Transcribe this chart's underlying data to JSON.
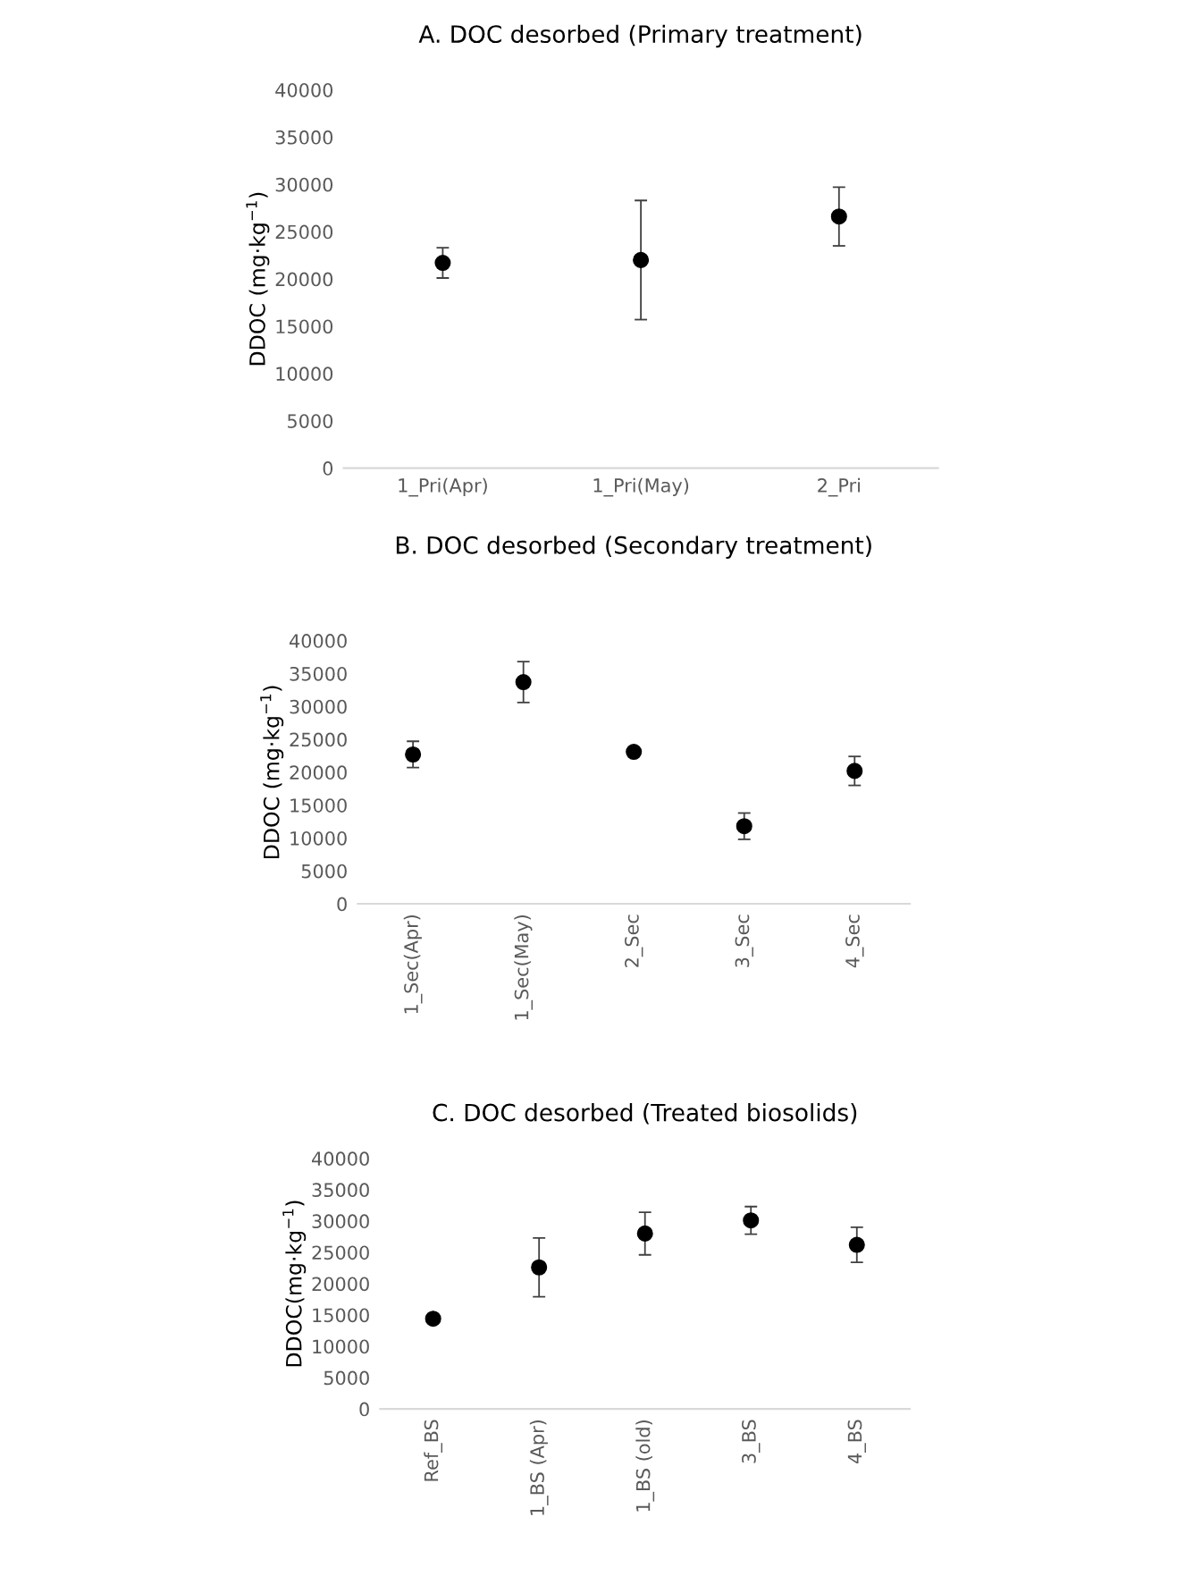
{
  "chart_data": [
    {
      "type": "scatter",
      "title": "A. DOC desorbed (Primary treatment)",
      "ylabel": "DDOC (mg·kg$^{−1}$)",
      "categories": [
        "1_Pri(Apr)",
        "1_Pri(May)",
        "2_Pri"
      ],
      "series": [
        {
          "color": "#000000",
          "values": [
            21700,
            22000,
            26600
          ],
          "errors": [
            1600,
            6300,
            3100
          ]
        }
      ],
      "ylim": [
        0,
        40000
      ],
      "yticks": [
        0,
        5000,
        10000,
        15000,
        20000,
        25000,
        30000,
        35000,
        40000
      ],
      "marker": "circle",
      "grid": false
    },
    {
      "type": "scatter",
      "title": "B. DOC desorbed (Secondary treatment)",
      "ylabel": "DDOC (mg·kg$^{−1}$)",
      "categories": [
        "1_Sec(Apr)",
        "1_Sec(May)",
        "2_Sec",
        "3_Sec",
        "4_Sec"
      ],
      "series": [
        {
          "color": "#000000",
          "values": [
            22700,
            33700,
            23100,
            11800,
            20200
          ],
          "errors": [
            2000,
            3100,
            600,
            2000,
            2200
          ]
        }
      ],
      "ylim": [
        0,
        40000
      ],
      "yticks": [
        0,
        5000,
        10000,
        15000,
        20000,
        25000,
        30000,
        35000,
        40000
      ],
      "marker": "circle",
      "grid": false
    },
    {
      "type": "scatter",
      "title": "C. DOC desorbed (Treated biosolids)",
      "ylabel": "DDOC(mg·kg$^{−1}$)",
      "categories": [
        "Ref_BS",
        "1_BS (Apr)",
        "1_BS (old)",
        "3_BS",
        "4_BS"
      ],
      "series": [
        {
          "color": "#000000",
          "values": [
            14400,
            22600,
            28000,
            30100,
            26200
          ],
          "errors": [
            null,
            4700,
            3400,
            2200,
            2800
          ]
        }
      ],
      "ylim": [
        0,
        40000
      ],
      "yticks": [
        0,
        5000,
        10000,
        15000,
        20000,
        25000,
        30000,
        35000,
        40000
      ],
      "marker": "circle",
      "grid": false
    }
  ]
}
